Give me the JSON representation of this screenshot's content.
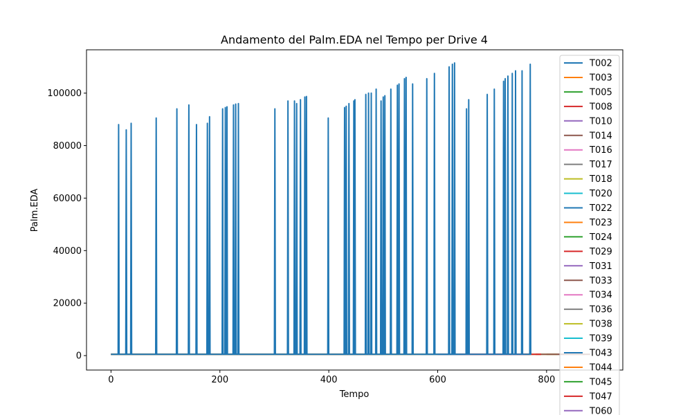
{
  "chart_data": {
    "type": "line",
    "title": "Andamento del Palm.EDA nel Tempo per Drive 4",
    "xlabel": "Tempo",
    "ylabel": "Palm.EDA",
    "xlim": [
      -45,
      940
    ],
    "ylim": [
      -5500,
      116500
    ],
    "xticks": [
      0,
      200,
      400,
      600,
      800
    ],
    "yticks": [
      0,
      20000,
      40000,
      60000,
      80000,
      100000
    ],
    "legend_position": "right",
    "baseline_value": 500,
    "series": [
      {
        "name": "T002",
        "color": "#1f77b4",
        "x_range": [
          0,
          770
        ],
        "spikes": [
          [
            14,
            88000
          ],
          [
            28,
            86000
          ],
          [
            37,
            88500
          ],
          [
            83,
            90500
          ],
          [
            121,
            94000
          ],
          [
            143,
            95500
          ],
          [
            157,
            88000
          ],
          [
            177,
            88500
          ],
          [
            181,
            91000
          ],
          [
            205,
            94000
          ],
          [
            210,
            94500
          ],
          [
            213,
            94800
          ],
          [
            225,
            95500
          ],
          [
            229,
            95800
          ],
          [
            234,
            96000
          ],
          [
            301,
            94000
          ],
          [
            325,
            97000
          ],
          [
            337,
            97000
          ],
          [
            341,
            96000
          ],
          [
            348,
            97500
          ],
          [
            356,
            98500
          ],
          [
            359,
            98700
          ],
          [
            399,
            90500
          ],
          [
            429,
            94500
          ],
          [
            432,
            95000
          ],
          [
            437,
            96000
          ],
          [
            446,
            97000
          ],
          [
            448,
            97500
          ],
          [
            468,
            99500
          ],
          [
            473,
            100000
          ],
          [
            478,
            100000
          ],
          [
            487,
            101500
          ],
          [
            496,
            97000
          ],
          [
            500,
            98500
          ],
          [
            503,
            99000
          ],
          [
            514,
            101500
          ],
          [
            526,
            103000
          ],
          [
            529,
            103500
          ],
          [
            539,
            105500
          ],
          [
            542,
            106000
          ],
          [
            554,
            103500
          ],
          [
            580,
            105500
          ],
          [
            594,
            107500
          ],
          [
            621,
            110000
          ],
          [
            627,
            111000
          ],
          [
            631,
            111500
          ],
          [
            653,
            94000
          ],
          [
            657,
            97500
          ],
          [
            691,
            99500
          ],
          [
            704,
            101500
          ],
          [
            721,
            104500
          ],
          [
            724,
            105500
          ],
          [
            729,
            106500
          ],
          [
            737,
            107500
          ],
          [
            743,
            108500
          ],
          [
            755,
            108500
          ],
          [
            770,
            111000
          ]
        ]
      },
      {
        "name": "T003",
        "color": "#ff7f0e",
        "x_range": [
          0,
          600
        ]
      },
      {
        "name": "T005",
        "color": "#2ca02c",
        "x_range": [
          0,
          560
        ]
      },
      {
        "name": "T008",
        "color": "#d62728",
        "x_range": [
          600,
          790
        ]
      },
      {
        "name": "T010",
        "color": "#9467bd",
        "x_range": [
          0,
          500
        ]
      },
      {
        "name": "T014",
        "color": "#8c564b",
        "x_range": [
          780,
          870
        ]
      },
      {
        "name": "T016",
        "color": "#e377c2",
        "x_range": [
          0,
          480
        ]
      },
      {
        "name": "T017",
        "color": "#7f7f7f",
        "x_range": [
          0,
          460
        ]
      },
      {
        "name": "T018",
        "color": "#bcbd22",
        "x_range": [
          760,
          820
        ]
      },
      {
        "name": "T020",
        "color": "#17becf",
        "x_range": [
          560,
          650
        ]
      },
      {
        "name": "T022",
        "color": "#1f77b4",
        "x_range": [
          0,
          440
        ]
      },
      {
        "name": "T023",
        "color": "#ff7f0e",
        "x_range": [
          0,
          420
        ]
      },
      {
        "name": "T024",
        "color": "#2ca02c",
        "x_range": [
          0,
          400
        ]
      },
      {
        "name": "T029",
        "color": "#d62728",
        "x_range": [
          640,
          770
        ]
      },
      {
        "name": "T031",
        "color": "#9467bd",
        "x_range": [
          0,
          380
        ]
      },
      {
        "name": "T033",
        "color": "#8c564b",
        "x_range": [
          800,
          880
        ]
      },
      {
        "name": "T034",
        "color": "#e377c2",
        "x_range": [
          0,
          360
        ]
      },
      {
        "name": "T036",
        "color": "#7f7f7f",
        "x_range": [
          0,
          340
        ]
      },
      {
        "name": "T038",
        "color": "#bcbd22",
        "x_range": [
          0,
          320
        ]
      },
      {
        "name": "T039",
        "color": "#17becf",
        "x_range": [
          570,
          640
        ]
      },
      {
        "name": "T043",
        "color": "#1f77b4",
        "x_range": [
          0,
          300
        ]
      },
      {
        "name": "T044",
        "color": "#ff7f0e",
        "x_range": [
          0,
          280
        ]
      },
      {
        "name": "T045",
        "color": "#2ca02c",
        "x_range": [
          0,
          260
        ]
      },
      {
        "name": "T047",
        "color": "#d62728",
        "x_range": [
          0,
          240
        ]
      },
      {
        "name": "T060",
        "color": "#9467bd",
        "x_range": [
          0,
          220
        ]
      }
    ]
  }
}
